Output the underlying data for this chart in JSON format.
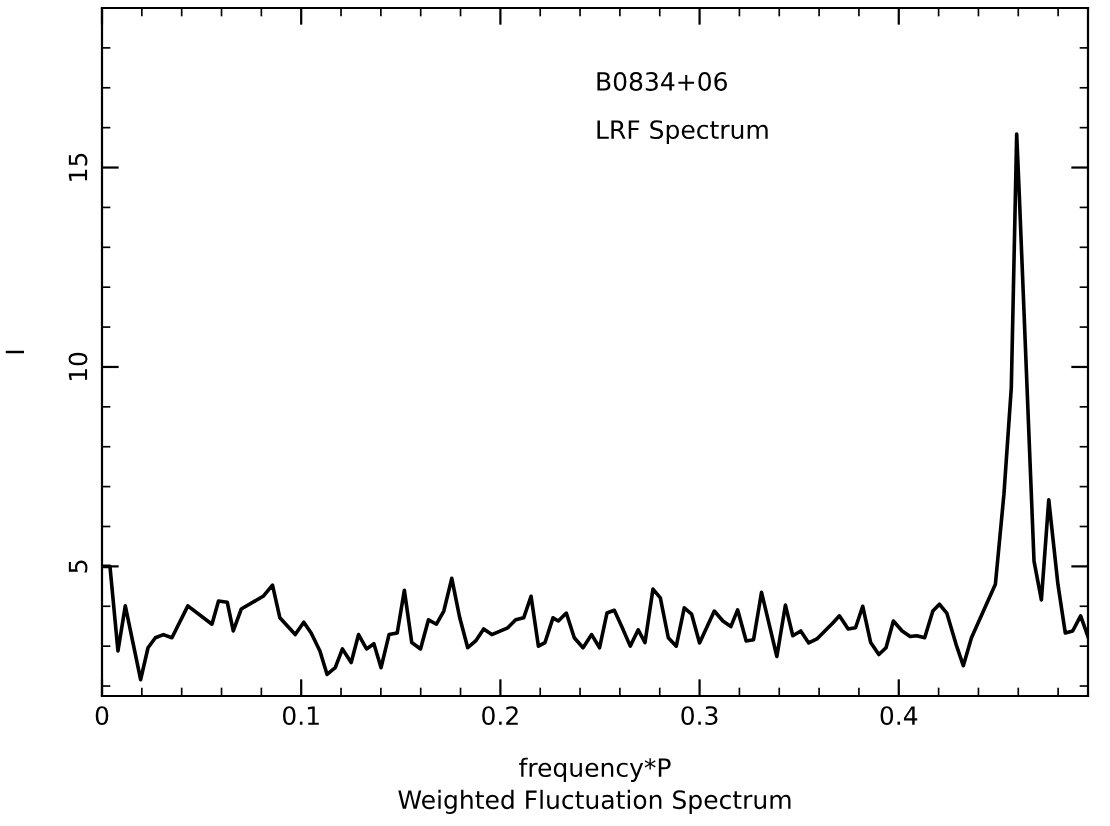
{
  "chart_data": {
    "type": "line",
    "xlabel": "frequency*P",
    "ylabel": "I",
    "annotations": [
      {
        "text": "B0834+06"
      },
      {
        "text": "LRF Spectrum"
      },
      {
        "text": "Weighted Fluctuation Spectrum"
      }
    ],
    "xlim": [
      0,
      0.495
    ],
    "ylim": [
      1.75,
      19
    ],
    "xticks": [
      0,
      0.1,
      0.2,
      0.3,
      0.4
    ],
    "yticks": [
      5,
      10,
      15
    ],
    "grid": false,
    "legend": false,
    "marker": "none",
    "line_style": "solid",
    "series": [
      {
        "color": "#000000",
        "x": [
          0,
          0.004,
          0.008,
          0.0117,
          0.0194,
          0.0231,
          0.0268,
          0.0308,
          0.0351,
          0.0431,
          0.0552,
          0.0585,
          0.0629,
          0.0659,
          0.0699,
          0.0809,
          0.0856,
          0.0893,
          0.097,
          0.1013,
          0.105,
          0.1094,
          0.113,
          0.1171,
          0.1207,
          0.1251,
          0.1288,
          0.1328,
          0.1365,
          0.1401,
          0.1441,
          0.1482,
          0.1518,
          0.1555,
          0.1599,
          0.1639,
          0.1679,
          0.1716,
          0.1756,
          0.1796,
          0.1836,
          0.1876,
          0.1916,
          0.1957,
          0.2037,
          0.2077,
          0.2117,
          0.2154,
          0.2191,
          0.2224,
          0.2264,
          0.2291,
          0.2331,
          0.2371,
          0.2415,
          0.2458,
          0.2498,
          0.2535,
          0.2572,
          0.2612,
          0.2652,
          0.2692,
          0.2726,
          0.2766,
          0.2803,
          0.2843,
          0.2883,
          0.2923,
          0.296,
          0.3,
          0.3074,
          0.3117,
          0.3157,
          0.3191,
          0.3234,
          0.3271,
          0.3311,
          0.3388,
          0.3431,
          0.3468,
          0.3508,
          0.3548,
          0.3589,
          0.3629,
          0.3669,
          0.3702,
          0.3746,
          0.3783,
          0.3819,
          0.3859,
          0.39,
          0.3936,
          0.3973,
          0.4017,
          0.4057,
          0.409,
          0.413,
          0.4171,
          0.4204,
          0.4241,
          0.4288,
          0.4324,
          0.4365,
          0.4485,
          0.4528,
          0.4565,
          0.4592,
          0.4605,
          0.4679,
          0.4716,
          0.4753,
          0.4799,
          0.4836,
          0.4873,
          0.4913,
          0.495
        ],
        "values": [
          5.0,
          5.0,
          2.88,
          4.01,
          2.16,
          2.96,
          3.21,
          3.29,
          3.21,
          4.01,
          3.55,
          4.13,
          4.1,
          3.38,
          3.93,
          4.25,
          4.53,
          3.71,
          3.29,
          3.6,
          3.33,
          2.88,
          2.29,
          2.46,
          2.93,
          2.59,
          3.29,
          2.93,
          3.06,
          2.46,
          3.29,
          3.33,
          4.4,
          3.09,
          2.93,
          3.66,
          3.55,
          3.88,
          4.7,
          3.71,
          2.96,
          3.13,
          3.43,
          3.29,
          3.46,
          3.66,
          3.71,
          4.25,
          3.0,
          3.09,
          3.71,
          3.63,
          3.83,
          3.21,
          2.96,
          3.29,
          2.96,
          3.83,
          3.9,
          3.46,
          3.0,
          3.41,
          3.09,
          4.43,
          4.21,
          3.21,
          3.0,
          3.96,
          3.8,
          3.08,
          3.88,
          3.63,
          3.49,
          3.91,
          3.13,
          3.16,
          4.35,
          2.74,
          4.03,
          3.26,
          3.38,
          3.08,
          3.18,
          3.38,
          3.58,
          3.76,
          3.43,
          3.46,
          4.0,
          3.09,
          2.79,
          2.96,
          3.63,
          3.38,
          3.24,
          3.26,
          3.21,
          3.88,
          4.05,
          3.83,
          3.04,
          2.51,
          3.21,
          4.55,
          6.81,
          9.48,
          15.84,
          14.33,
          5.13,
          4.16,
          6.67,
          4.55,
          3.33,
          3.38,
          3.76,
          3.24
        ]
      }
    ]
  }
}
